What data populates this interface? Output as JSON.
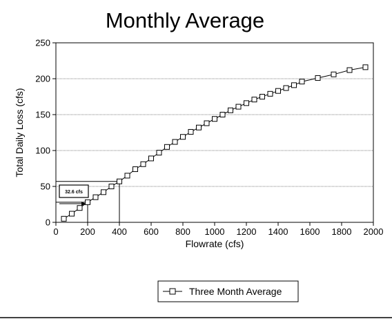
{
  "chart_data": {
    "type": "line",
    "title": "Monthly Average",
    "xlabel": "Flowrate (cfs)",
    "ylabel": "Total Daily Loss (cfs)",
    "xlim": [
      0,
      2000
    ],
    "ylim": [
      0,
      250
    ],
    "xticks": [
      "0",
      "200",
      "400",
      "600",
      "800",
      "1000",
      "1200",
      "1400",
      "1600",
      "1800",
      "2000"
    ],
    "yticks": [
      "0",
      "50",
      "100",
      "150",
      "200",
      "250"
    ],
    "grid": "horizontal",
    "legend_position": "bottom",
    "series": [
      {
        "name": "Three Month Average",
        "marker": "square",
        "color": "#000000",
        "x": [
          50,
          100,
          150,
          200,
          250,
          300,
          350,
          400,
          450,
          500,
          550,
          600,
          650,
          700,
          750,
          800,
          850,
          900,
          950,
          1000,
          1050,
          1100,
          1150,
          1200,
          1250,
          1300,
          1350,
          1400,
          1450,
          1500,
          1550,
          1650,
          1750,
          1850,
          1950
        ],
        "y": [
          5,
          12,
          20,
          28,
          35,
          42,
          50,
          57,
          65,
          74,
          81,
          89,
          97,
          105,
          112,
          119,
          126,
          132,
          138,
          144,
          150,
          156,
          161,
          166,
          171,
          175,
          179,
          183,
          187,
          191,
          196,
          201,
          206,
          212,
          216
        ]
      }
    ],
    "annotations": [
      {
        "text": "32.6 cfs"
      }
    ],
    "reference_lines": [
      {
        "type": "vertical",
        "x": 200,
        "y_to": 28
      },
      {
        "type": "vertical",
        "x": 400,
        "y_to": 57
      }
    ]
  }
}
